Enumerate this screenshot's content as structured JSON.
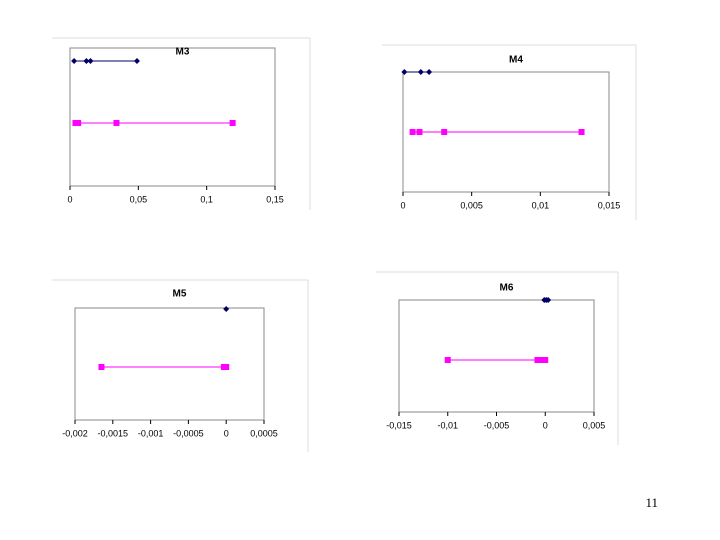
{
  "chart_data": [
    {
      "type": "strip",
      "title": "M3",
      "xlim": [
        0,
        0.15
      ],
      "xticks": [
        0,
        {
          "value": 0.05,
          "label": "0,05"
        },
        {
          "value": 0.1,
          "label": "0,1"
        },
        {
          "value": 0.15,
          "label": "0,15"
        }
      ],
      "series": [
        {
          "color": "#000066",
          "values": [
            0.003,
            0.012,
            0.015,
            0.049
          ]
        },
        {
          "color": "#ff00ff",
          "values": [
            0.004,
            0.006,
            0.034,
            0.119
          ]
        }
      ]
    },
    {
      "type": "strip",
      "title": "M4",
      "xlim": [
        0,
        0.015
      ],
      "xticks": [
        0,
        {
          "value": 0.005,
          "label": "0,005"
        },
        {
          "value": 0.01,
          "label": "0,01"
        },
        {
          "value": 0.015,
          "label": "0,015"
        }
      ],
      "series": [
        {
          "color": "#000066",
          "values": [
            0.0001,
            0.0013,
            0.0019
          ]
        },
        {
          "color": "#ff00ff",
          "values": [
            0.0007,
            0.0012,
            0.003,
            0.013
          ]
        }
      ]
    },
    {
      "type": "strip",
      "title": "M5",
      "xlim": [
        -0.002,
        0.0005
      ],
      "xticks": [
        {
          "value": -0.002,
          "label": "-0,002"
        },
        {
          "value": -0.0015,
          "label": "-0,0015"
        },
        {
          "value": -0.001,
          "label": "-0,001"
        },
        {
          "value": -0.0005,
          "label": "-0,0005"
        },
        0,
        {
          "value": 0.0005,
          "label": "0,0005"
        }
      ],
      "series": [
        {
          "color": "#000066",
          "values": [
            0
          ]
        },
        {
          "color": "#ff00ff",
          "values": [
            -0.00165,
            -3e-05,
            0
          ]
        }
      ]
    },
    {
      "type": "strip",
      "title": "M6",
      "xlim": [
        -0.015,
        0.005
      ],
      "xticks": [
        {
          "value": -0.015,
          "label": "-0,015"
        },
        {
          "value": -0.01,
          "label": "-0,01"
        },
        {
          "value": -0.005,
          "label": "-0,005"
        },
        0,
        {
          "value": 0.005,
          "label": "0,005"
        }
      ],
      "series": [
        {
          "color": "#000066",
          "values": [
            -0.0001,
            0.0001,
            0.0003
          ]
        },
        {
          "color": "#ff00ff",
          "values": [
            -0.01,
            -0.0008,
            -0.0004,
            0
          ]
        }
      ]
    }
  ],
  "page_number": "11"
}
